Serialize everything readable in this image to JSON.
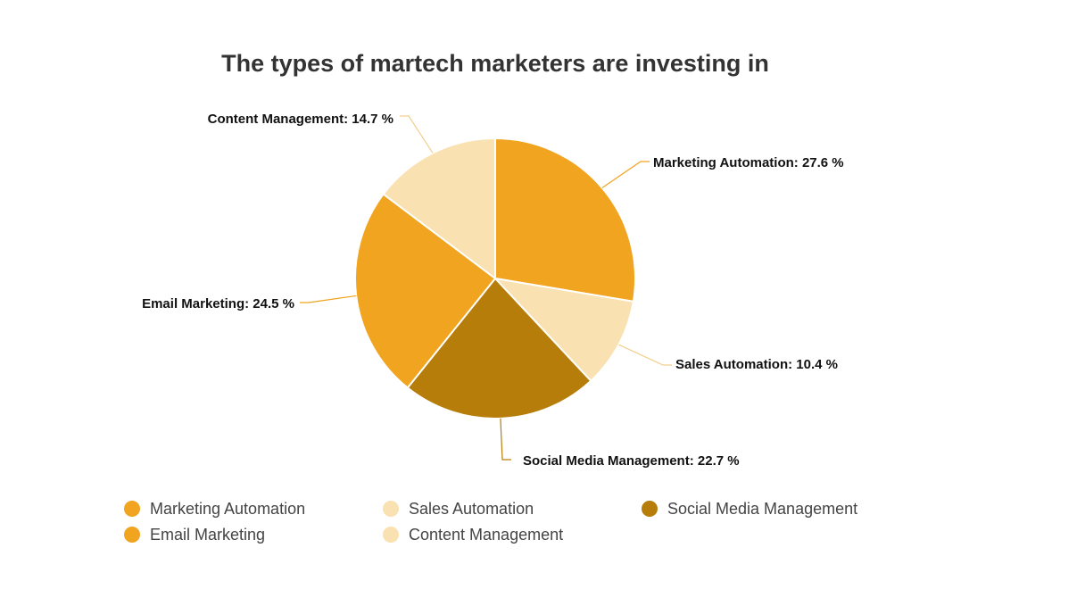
{
  "chart_data": {
    "type": "pie",
    "title": "The types of martech marketers are investing in",
    "label_suffix": " %",
    "slices": [
      {
        "name": "Marketing Automation",
        "value": 27.6,
        "color": "#f0a41f"
      },
      {
        "name": "Sales Automation",
        "value": 10.4,
        "color": "#fae1b1"
      },
      {
        "name": "Social Media Management",
        "value": 22.7,
        "color": "#b77d0b"
      },
      {
        "name": "Email Marketing",
        "value": 24.5,
        "color": "#f0a41f"
      },
      {
        "name": "Content Management",
        "value": 14.7,
        "color": "#fae1b1"
      }
    ],
    "legend": {
      "position": "bottom"
    }
  }
}
